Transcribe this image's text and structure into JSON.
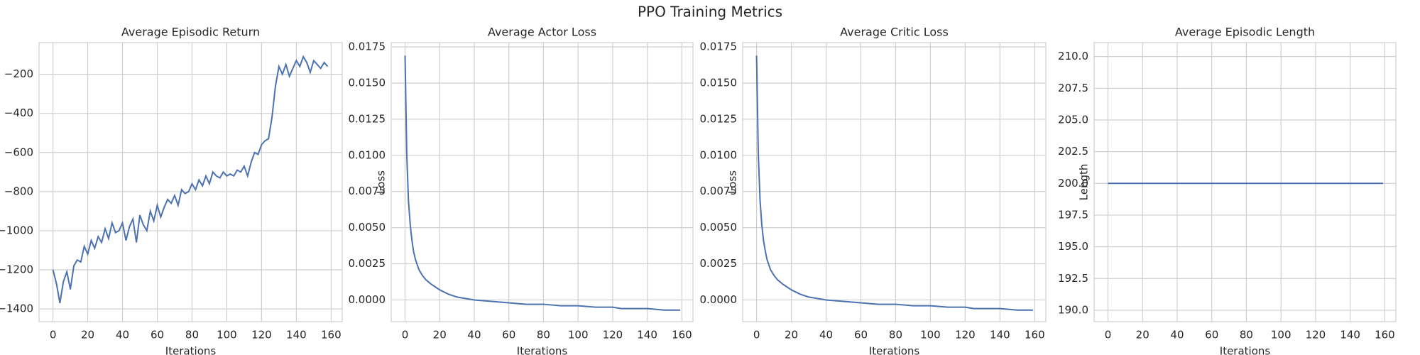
{
  "title": "PPO Training Metrics",
  "chart_data": [
    {
      "type": "line",
      "title": "Average Episodic Return",
      "xlabel": "Iterations",
      "x": [
        0,
        2,
        4,
        6,
        8,
        10,
        12,
        14,
        16,
        18,
        20,
        22,
        24,
        26,
        28,
        30,
        32,
        34,
        36,
        38,
        40,
        42,
        44,
        46,
        48,
        50,
        52,
        54,
        56,
        58,
        60,
        62,
        64,
        66,
        68,
        70,
        72,
        74,
        76,
        78,
        80,
        82,
        84,
        86,
        88,
        90,
        92,
        94,
        96,
        98,
        100,
        102,
        104,
        106,
        108,
        110,
        112,
        114,
        116,
        118,
        120,
        122,
        124,
        126,
        128,
        130,
        132,
        134,
        136,
        138,
        140,
        142,
        144,
        146,
        148,
        150,
        152,
        154,
        156,
        158
      ],
      "series": [
        {
          "name": "Average Episodic Return",
          "color": "#4c72b0",
          "values": [
            -1200,
            -1270,
            -1370,
            -1260,
            -1210,
            -1300,
            -1180,
            -1150,
            -1160,
            -1080,
            -1120,
            -1050,
            -1090,
            -1030,
            -1060,
            -990,
            -1040,
            -960,
            -1010,
            -1000,
            -960,
            -1050,
            -980,
            -940,
            -1060,
            -920,
            -970,
            -1000,
            -900,
            -950,
            -870,
            -930,
            -880,
            -840,
            -860,
            -820,
            -870,
            -790,
            -810,
            -800,
            -760,
            -790,
            -740,
            -770,
            -720,
            -760,
            -700,
            -720,
            -730,
            -700,
            -720,
            -710,
            -720,
            -690,
            -700,
            -670,
            -720,
            -650,
            -600,
            -610,
            -560,
            -540,
            -530,
            -420,
            -260,
            -160,
            -200,
            -150,
            -210,
            -170,
            -130,
            -160,
            -110,
            -140,
            -190,
            -130,
            -150,
            -170,
            -140,
            -160
          ]
        }
      ],
      "xlim": [
        -8,
        166.4
      ],
      "xticks": [
        0,
        20,
        40,
        60,
        80,
        100,
        120,
        140,
        160
      ],
      "ylim": [
        -1465,
        -38
      ],
      "yticks": [
        {
          "value": -1400,
          "label": "−1400"
        },
        {
          "value": -1200,
          "label": "−1200"
        },
        {
          "value": -1000,
          "label": "−1000"
        },
        {
          "value": -800,
          "label": "−800"
        },
        {
          "value": -600,
          "label": "−600"
        },
        {
          "value": -400,
          "label": "−400"
        },
        {
          "value": -200,
          "label": "−200"
        }
      ],
      "grid": true
    },
    {
      "type": "line",
      "title": "Average Actor Loss",
      "xlabel": "Iterations",
      "ylabel": "Loss",
      "x": [
        0,
        1,
        2,
        3,
        4,
        5,
        6,
        8,
        10,
        12,
        15,
        20,
        25,
        30,
        40,
        50,
        60,
        70,
        80,
        90,
        100,
        110,
        120,
        125,
        130,
        140,
        150,
        159
      ],
      "series": [
        {
          "name": "Average Actor Loss",
          "color": "#4c72b0",
          "values": [
            0.0169,
            0.01,
            0.0068,
            0.0052,
            0.0041,
            0.0033,
            0.0028,
            0.0021,
            0.0017,
            0.0014,
            0.0011,
            0.0007,
            0.0004,
            0.0002,
            0.0,
            -0.0001,
            -0.0002,
            -0.0003,
            -0.0003,
            -0.0004,
            -0.0004,
            -0.0005,
            -0.0005,
            -0.0006,
            -0.0006,
            -0.0006,
            -0.0007,
            -0.0007
          ]
        }
      ],
      "xlim": [
        -8,
        166.4
      ],
      "xticks": [
        0,
        20,
        40,
        60,
        80,
        100,
        120,
        140,
        160
      ],
      "ylim": [
        -0.0015,
        0.0178
      ],
      "yticks": [
        {
          "value": 0,
          "label": "0.0000"
        },
        {
          "value": 0.0025,
          "label": "0.0025"
        },
        {
          "value": 0.005,
          "label": "0.0050"
        },
        {
          "value": 0.0075,
          "label": "0.0075"
        },
        {
          "value": 0.01,
          "label": "0.0100"
        },
        {
          "value": 0.0125,
          "label": "0.0125"
        },
        {
          "value": 0.015,
          "label": "0.0150"
        },
        {
          "value": 0.0175,
          "label": "0.0175"
        }
      ],
      "grid": true
    },
    {
      "type": "line",
      "title": "Average Critic Loss",
      "xlabel": "Iterations",
      "ylabel": "Loss",
      "x": [
        0,
        1,
        2,
        3,
        4,
        5,
        6,
        8,
        10,
        12,
        15,
        20,
        25,
        30,
        40,
        50,
        60,
        70,
        80,
        90,
        100,
        110,
        120,
        125,
        130,
        140,
        150,
        159
      ],
      "series": [
        {
          "name": "Average Critic Loss",
          "color": "#4c72b0",
          "values": [
            0.0169,
            0.0101,
            0.0069,
            0.0052,
            0.0041,
            0.0034,
            0.0028,
            0.0021,
            0.0017,
            0.0014,
            0.0011,
            0.0007,
            0.0004,
            0.0002,
            0.0,
            -0.0001,
            -0.0002,
            -0.0003,
            -0.0003,
            -0.0004,
            -0.0004,
            -0.0005,
            -0.0005,
            -0.0006,
            -0.0006,
            -0.0006,
            -0.0007,
            -0.0007
          ]
        }
      ],
      "xlim": [
        -8,
        166.4
      ],
      "xticks": [
        0,
        20,
        40,
        60,
        80,
        100,
        120,
        140,
        160
      ],
      "ylim": [
        -0.0015,
        0.0178
      ],
      "yticks": [
        {
          "value": 0,
          "label": "0.0000"
        },
        {
          "value": 0.0025,
          "label": "0.0025"
        },
        {
          "value": 0.005,
          "label": "0.0050"
        },
        {
          "value": 0.0075,
          "label": "0.0075"
        },
        {
          "value": 0.01,
          "label": "0.0100"
        },
        {
          "value": 0.0125,
          "label": "0.0125"
        },
        {
          "value": 0.015,
          "label": "0.0150"
        },
        {
          "value": 0.0175,
          "label": "0.0175"
        }
      ],
      "grid": true
    },
    {
      "type": "line",
      "title": "Average Episodic Length",
      "xlabel": "Iterations",
      "ylabel": "Length",
      "x": [
        0,
        159
      ],
      "series": [
        {
          "name": "Average Episodic Length",
          "color": "#4c72b0",
          "values": [
            200,
            200
          ]
        }
      ],
      "xlim": [
        -8,
        166.4
      ],
      "xticks": [
        0,
        20,
        40,
        60,
        80,
        100,
        120,
        140,
        160
      ],
      "ylim": [
        189.1,
        211.1
      ],
      "yticks": [
        {
          "value": 190,
          "label": "190.0"
        },
        {
          "value": 192.5,
          "label": "192.5"
        },
        {
          "value": 195,
          "label": "195.0"
        },
        {
          "value": 197.5,
          "label": "197.5"
        },
        {
          "value": 200,
          "label": "200.0"
        },
        {
          "value": 202.5,
          "label": "202.5"
        },
        {
          "value": 205,
          "label": "205.0"
        },
        {
          "value": 207.5,
          "label": "207.5"
        },
        {
          "value": 210,
          "label": "210.0"
        }
      ],
      "grid": true
    }
  ]
}
